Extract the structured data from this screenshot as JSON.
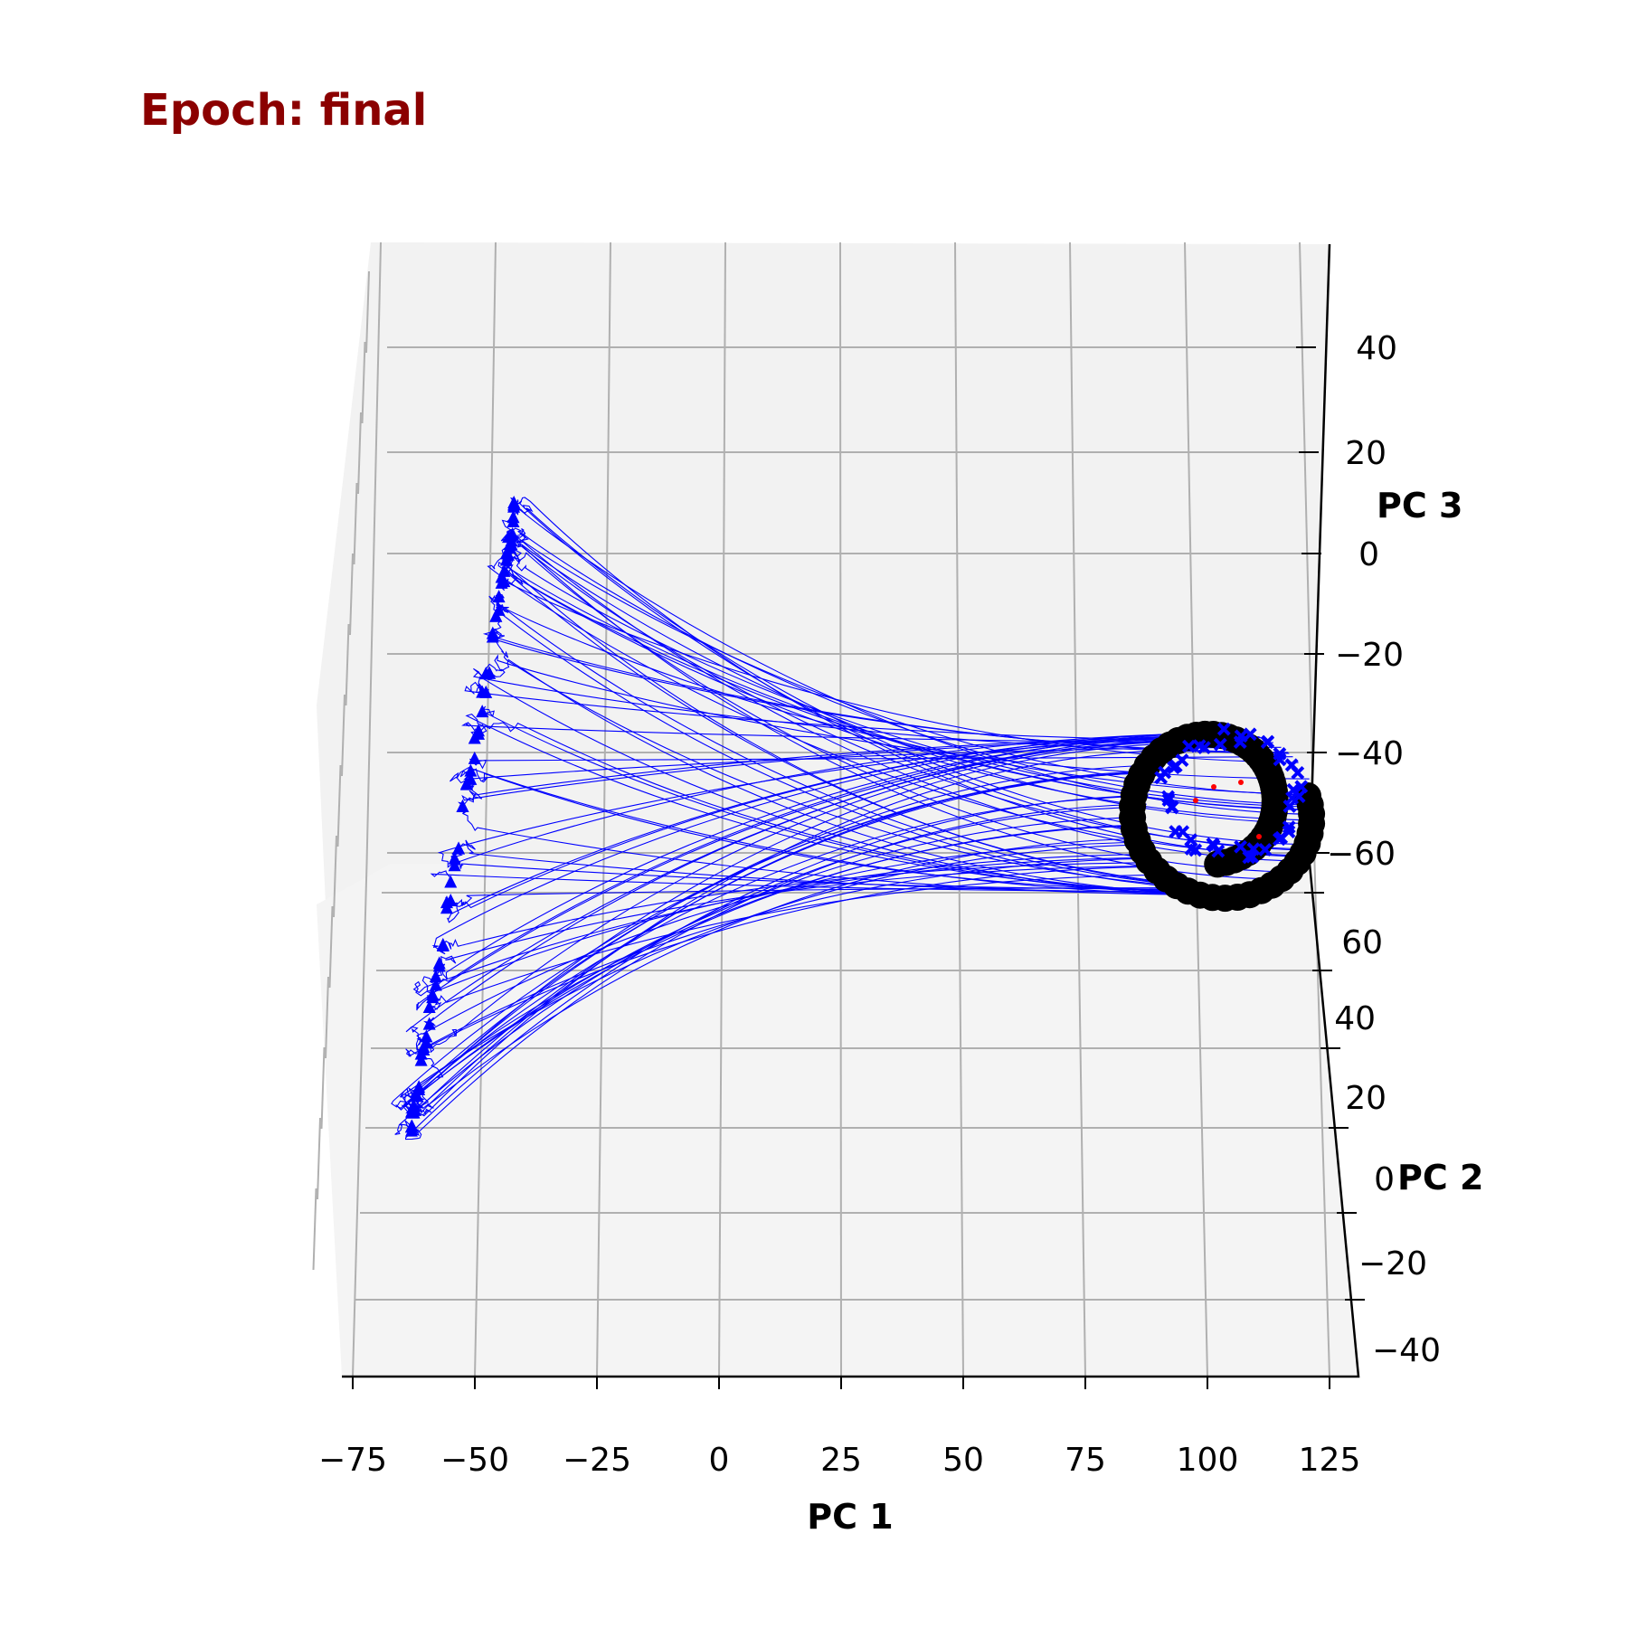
{
  "chart_data": {
    "type": "line",
    "projection": "3d",
    "title": "Epoch: final",
    "axes": {
      "x": {
        "label": "PC 1",
        "ticks": [
          "−75",
          "−50",
          "−25",
          "0",
          "25",
          "50",
          "75",
          "100",
          "125"
        ],
        "range": [
          -78,
          130
        ]
      },
      "y": {
        "label": "PC 2",
        "ticks": [
          "−40",
          "−20",
          "0",
          "20",
          "40",
          "60"
        ],
        "range": [
          -45,
          65
        ]
      },
      "z": {
        "label": "PC 3",
        "ticks": [
          "−60",
          "−40",
          "−20",
          "0",
          "20",
          "40"
        ],
        "range": [
          -65,
          55
        ]
      }
    },
    "grid": true,
    "series": [
      {
        "role": "trajectories",
        "marker": "line",
        "color": "#0000ff",
        "count": 80
      },
      {
        "role": "start points",
        "marker": "triangle",
        "color": "#0000ff"
      },
      {
        "role": "end points",
        "marker": "cross",
        "color": "#0000ff"
      },
      {
        "role": "fixed points",
        "marker": "circle",
        "color": "#000000"
      },
      {
        "role": "unstable points",
        "marker": "dot",
        "color": "#ff0000"
      }
    ],
    "start_cluster_x_range": [
      -65,
      -40
    ],
    "end_ring": {
      "center_x": 105,
      "radius_x": 12
    },
    "colors": {
      "grid": "#b0b0b0",
      "pane": "#f2f2f2",
      "title": "#8b0000"
    }
  }
}
